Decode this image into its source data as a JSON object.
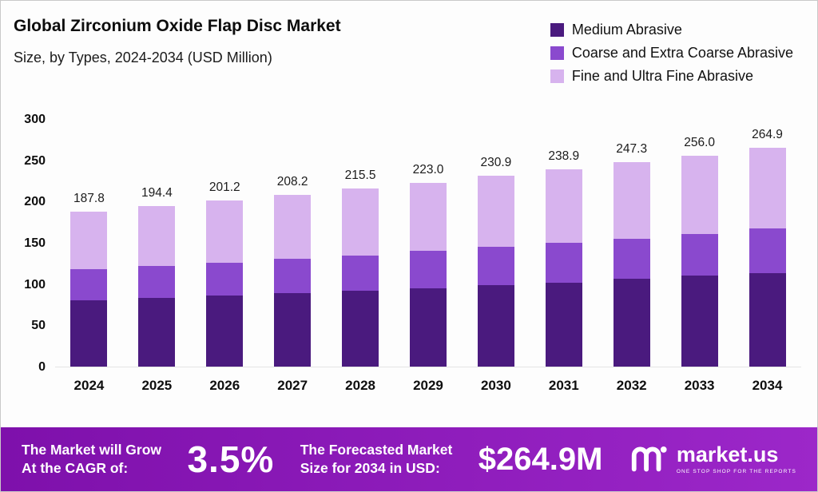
{
  "header": {
    "title": "Global Zirconium Oxide Flap Disc Market",
    "subtitle": "Size, by Types, 2024-2034 (USD Million)"
  },
  "chart_data": {
    "type": "bar",
    "stacked": true,
    "title": "Global Zirconium Oxide Flap Disc Market",
    "subtitle": "Size, by Types, 2024-2034 (USD Million)",
    "categories": [
      "2024",
      "2025",
      "2026",
      "2027",
      "2028",
      "2029",
      "2030",
      "2031",
      "2032",
      "2033",
      "2034"
    ],
    "series": [
      {
        "name": "Medium Abrasive",
        "color": "#4a1a7e",
        "values": [
          80,
          83,
          86,
          89,
          92,
          95,
          99,
          102,
          106,
          110,
          113
        ]
      },
      {
        "name": "Coarse and Extra Coarse Abrasive",
        "color": "#8a49ce",
        "values": [
          38,
          39,
          40,
          42,
          43,
          45,
          46,
          48,
          49,
          51,
          54
        ]
      },
      {
        "name": "Fine and Ultra Fine Abrasive",
        "color": "#d7b3ee",
        "values": [
          69.8,
          72.4,
          75.2,
          77.2,
          80.5,
          83,
          85.9,
          88.9,
          92.3,
          95,
          97.9
        ]
      }
    ],
    "totals": [
      187.8,
      194.4,
      201.2,
      208.2,
      215.5,
      223.0,
      230.9,
      238.9,
      247.3,
      256.0,
      264.9
    ],
    "xlabel": "",
    "ylabel": "",
    "ylim": [
      0,
      300
    ],
    "yticks": [
      0,
      50,
      100,
      150,
      200,
      250,
      300
    ],
    "grid": false,
    "legend_position": "top-right"
  },
  "banner": {
    "cagr_label_line1": "The Market will Grow",
    "cagr_label_line2": "At the CAGR of:",
    "cagr_value": "3.5%",
    "forecast_label_line1": "The Forecasted Market",
    "forecast_label_line2": "Size for 2034 in USD:",
    "forecast_value": "$264.9M",
    "brand_name": "market.us",
    "brand_tagline": "ONE STOP SHOP FOR THE REPORTS"
  },
  "colors": {
    "medium_abrasive": "#4a1a7e",
    "coarse_abrasive": "#8a49ce",
    "fine_abrasive": "#d7b3ee",
    "banner_start": "#7e10ab",
    "banner_end": "#9c27c9",
    "value_label": "#1b1b1b"
  }
}
